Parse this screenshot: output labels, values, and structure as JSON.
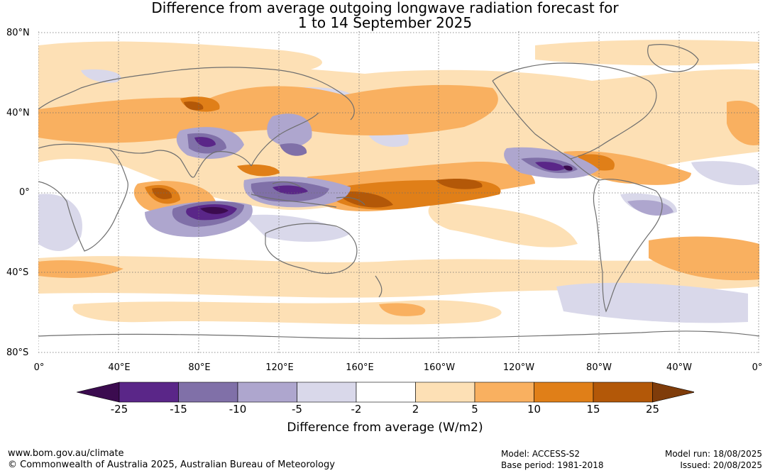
{
  "title_line1": "Difference from average outgoing longwave radiation forecast for",
  "title_line2": "1 to 14 September 2025",
  "lat_labels": [
    "80°N",
    "40°N",
    "0°",
    "40°S",
    "80°S"
  ],
  "lon_labels": [
    "0°",
    "40°E",
    "80°E",
    "120°E",
    "160°E",
    "160°W",
    "120°W",
    "80°W",
    "40°W",
    "0°"
  ],
  "colorbar": {
    "ticks": [
      "-25",
      "-15",
      "-10",
      "-5",
      "-2",
      "2",
      "5",
      "10",
      "15",
      "25"
    ],
    "colors": [
      "#3b0b4f",
      "#5a2688",
      "#8070a8",
      "#aea6ce",
      "#d9d8ea",
      "#ffffff",
      "#fde0b5",
      "#f9b060",
      "#e07f18",
      "#b35808",
      "#7f3c0a"
    ],
    "label": "Difference from average (W/m2)"
  },
  "footer": {
    "url": "www.bom.gov.au/climate",
    "copyright": "© Commonwealth of Australia 2025, Australian Bureau of Meteorology",
    "model": "Model: ACCESS-S2",
    "base_period": "Base period: 1981-2018",
    "model_run": "Model run: 18/08/2025",
    "issued": "Issued: 20/08/2025"
  }
}
